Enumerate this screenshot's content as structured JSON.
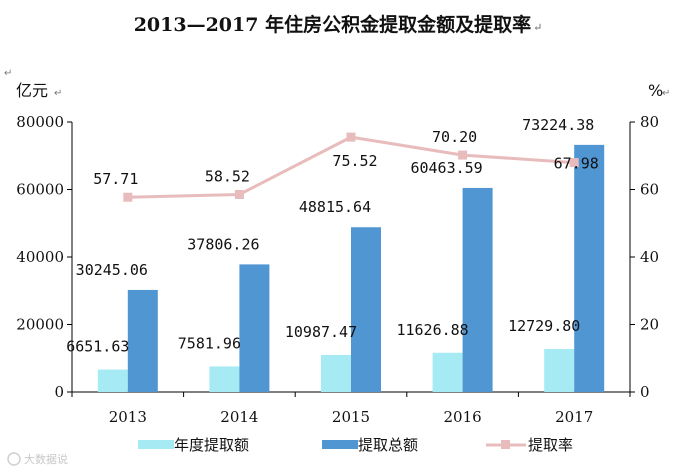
{
  "chart_data": {
    "type": "bar",
    "title": "2013—2017 年住房公积金提取金额及提取率",
    "categories": [
      "2013",
      "2014",
      "2015",
      "2016",
      "2017"
    ],
    "left_axis": {
      "unit": "亿元",
      "ylim": [
        0,
        80000
      ],
      "ticks": [
        0,
        20000,
        40000,
        60000,
        80000
      ]
    },
    "right_axis": {
      "unit": "%",
      "ylim": [
        0,
        80
      ],
      "ticks": [
        0,
        20,
        40,
        60,
        80
      ]
    },
    "series": [
      {
        "name": "年度提取额",
        "kind": "bar",
        "axis": "left",
        "color": "#a6eaf4",
        "values": [
          6651.63,
          7581.96,
          10987.47,
          11626.88,
          12729.8
        ],
        "labels": [
          "6651.63",
          "7581.96",
          "10987.47",
          "11626.88",
          "12729.80"
        ]
      },
      {
        "name": "提取总额",
        "kind": "bar",
        "axis": "left",
        "color": "#4f96d3",
        "values": [
          30245.06,
          37806.26,
          48815.64,
          60463.59,
          73224.38
        ],
        "labels": [
          "30245.06",
          "37806.26",
          "48815.64",
          "60463.59",
          "73224.38"
        ]
      },
      {
        "name": "提取率",
        "kind": "line",
        "axis": "right",
        "color": "#e8bcbc",
        "values": [
          57.71,
          58.52,
          75.52,
          70.2,
          67.98
        ],
        "labels": [
          "57.71",
          "58.52",
          "75.52",
          "70.20",
          "67.98"
        ]
      }
    ],
    "grid": false,
    "legend": "bottom"
  },
  "watermark": "大数据说"
}
